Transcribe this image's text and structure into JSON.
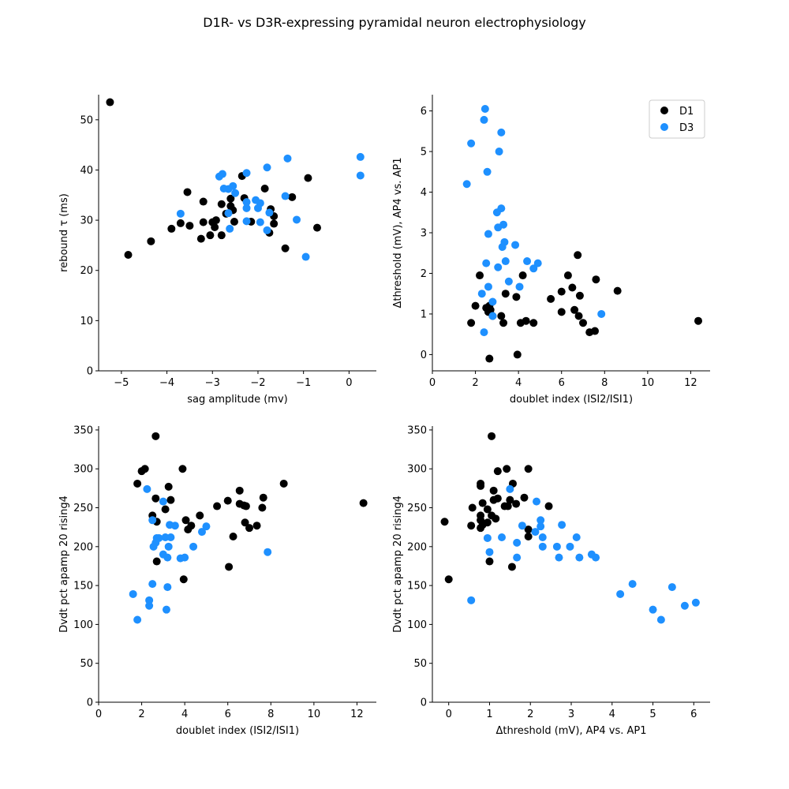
{
  "figure": {
    "title": "D1R- vs D3R-expressing pyramidal neuron electrophysiology"
  },
  "colors": {
    "D1": "#000000",
    "D3": "#1e90ff"
  },
  "chart_data": [
    {
      "type": "scatter",
      "xlabel": "sag amplitude (mv)",
      "ylabel": "rebound τ (ms)",
      "xlim": [
        -5.5,
        0.6
      ],
      "ylim": [
        0,
        55
      ],
      "xticks": [
        -5,
        -4,
        -3,
        -2,
        -1,
        0
      ],
      "yticks": [
        0,
        10,
        20,
        30,
        40,
        50
      ],
      "legend": null,
      "series": [
        {
          "name": "D1",
          "points": [
            [
              -5.25,
              53.5
            ],
            [
              -4.85,
              23.1
            ],
            [
              -4.35,
              25.8
            ],
            [
              -3.9,
              28.3
            ],
            [
              -3.7,
              29.4
            ],
            [
              -3.55,
              35.6
            ],
            [
              -3.5,
              28.9
            ],
            [
              -3.25,
              26.3
            ],
            [
              -3.2,
              33.7
            ],
            [
              -3.2,
              29.6
            ],
            [
              -3.05,
              27.0
            ],
            [
              -3.0,
              29.6
            ],
            [
              -2.95,
              28.6
            ],
            [
              -2.92,
              30.0
            ],
            [
              -2.8,
              33.2
            ],
            [
              -2.8,
              27.0
            ],
            [
              -2.7,
              31.3
            ],
            [
              -2.6,
              34.3
            ],
            [
              -2.6,
              32.8
            ],
            [
              -2.55,
              32.0
            ],
            [
              -2.52,
              29.7
            ],
            [
              -2.35,
              38.8
            ],
            [
              -2.3,
              34.4
            ],
            [
              -2.15,
              29.7
            ],
            [
              -1.85,
              36.3
            ],
            [
              -1.75,
              27.5
            ],
            [
              -1.72,
              32.2
            ],
            [
              -1.65,
              30.8
            ],
            [
              -1.65,
              29.3
            ],
            [
              -1.4,
              24.4
            ],
            [
              -1.25,
              34.6
            ],
            [
              -0.9,
              38.4
            ],
            [
              -0.7,
              28.5
            ]
          ]
        },
        {
          "name": "D3",
          "points": [
            [
              -3.7,
              31.3
            ],
            [
              -2.85,
              38.7
            ],
            [
              -2.78,
              39.2
            ],
            [
              -2.75,
              36.3
            ],
            [
              -2.65,
              36.2
            ],
            [
              -2.55,
              36.8
            ],
            [
              -2.62,
              28.3
            ],
            [
              -2.65,
              31.4
            ],
            [
              -2.5,
              35.4
            ],
            [
              -2.25,
              39.4
            ],
            [
              -2.25,
              33.6
            ],
            [
              -2.25,
              32.4
            ],
            [
              -2.25,
              29.8
            ],
            [
              -2.05,
              34.0
            ],
            [
              -2.0,
              32.4
            ],
            [
              -1.95,
              29.6
            ],
            [
              -1.95,
              33.4
            ],
            [
              -1.8,
              40.5
            ],
            [
              -1.8,
              28.0
            ],
            [
              -1.75,
              31.5
            ],
            [
              -1.4,
              34.8
            ],
            [
              -1.35,
              42.3
            ],
            [
              -1.15,
              30.1
            ],
            [
              -0.95,
              22.7
            ],
            [
              0.25,
              42.6
            ],
            [
              0.25,
              38.9
            ]
          ]
        }
      ]
    },
    {
      "type": "scatter",
      "xlabel": "doublet index (ISI2/ISI1)",
      "ylabel": "Δthreshold (mV), AP4 vs. AP1",
      "xlim": [
        0,
        12.9
      ],
      "ylim": [
        -0.4,
        6.4
      ],
      "xticks": [
        0,
        2,
        4,
        6,
        8,
        10,
        12
      ],
      "yticks": [
        0,
        1,
        2,
        3,
        4,
        5,
        6
      ],
      "legend": {
        "location": "top-right",
        "entries": [
          "D1",
          "D3"
        ]
      },
      "series": [
        {
          "name": "D1",
          "points": [
            [
              1.8,
              0.78
            ],
            [
              2.0,
              1.2
            ],
            [
              2.2,
              1.95
            ],
            [
              2.5,
              1.15
            ],
            [
              2.6,
              1.05
            ],
            [
              2.65,
              1.2
            ],
            [
              2.7,
              1.1
            ],
            [
              2.65,
              -0.1
            ],
            [
              2.8,
              0.95
            ],
            [
              3.2,
              0.95
            ],
            [
              3.3,
              0.78
            ],
            [
              3.4,
              1.5
            ],
            [
              3.9,
              1.42
            ],
            [
              3.95,
              0.0
            ],
            [
              4.1,
              0.78
            ],
            [
              4.2,
              1.95
            ],
            [
              4.35,
              0.83
            ],
            [
              4.7,
              0.78
            ],
            [
              5.5,
              1.37
            ],
            [
              6.0,
              1.55
            ],
            [
              6.0,
              1.05
            ],
            [
              6.3,
              1.95
            ],
            [
              6.5,
              1.65
            ],
            [
              6.6,
              1.1
            ],
            [
              6.75,
              2.45
            ],
            [
              6.8,
              0.95
            ],
            [
              6.85,
              1.45
            ],
            [
              7.0,
              0.78
            ],
            [
              7.3,
              0.55
            ],
            [
              7.55,
              0.58
            ],
            [
              7.6,
              1.85
            ],
            [
              8.6,
              1.57
            ],
            [
              12.35,
              0.83
            ]
          ]
        },
        {
          "name": "D3",
          "points": [
            [
              1.6,
              4.2
            ],
            [
              1.8,
              5.2
            ],
            [
              2.3,
              1.5
            ],
            [
              2.4,
              0.55
            ],
            [
              2.4,
              5.78
            ],
            [
              2.45,
              6.05
            ],
            [
              2.5,
              2.25
            ],
            [
              2.55,
              4.5
            ],
            [
              2.6,
              2.97
            ],
            [
              2.6,
              1.67
            ],
            [
              2.8,
              0.95
            ],
            [
              2.8,
              1.3
            ],
            [
              3.0,
              3.5
            ],
            [
              3.05,
              3.13
            ],
            [
              3.05,
              2.15
            ],
            [
              3.1,
              5.0
            ],
            [
              3.2,
              5.47
            ],
            [
              3.2,
              3.6
            ],
            [
              3.25,
              2.65
            ],
            [
              3.3,
              3.2
            ],
            [
              3.35,
              2.77
            ],
            [
              3.4,
              2.3
            ],
            [
              3.55,
              1.8
            ],
            [
              3.85,
              2.7
            ],
            [
              4.05,
              1.67
            ],
            [
              4.4,
              2.3
            ],
            [
              4.7,
              2.12
            ],
            [
              4.9,
              2.25
            ],
            [
              7.85,
              1.0
            ]
          ]
        }
      ]
    },
    {
      "type": "scatter",
      "xlabel": "doublet index (ISI2/ISI1)",
      "ylabel": "Dvdt pct apamp  20  rising4",
      "xlim": [
        0,
        12.9
      ],
      "ylim": [
        0,
        355
      ],
      "xticks": [
        0,
        2,
        4,
        6,
        8,
        10,
        12
      ],
      "yticks": [
        0,
        50,
        100,
        150,
        200,
        250,
        300,
        350
      ],
      "legend": null,
      "series": [
        {
          "name": "D1",
          "points": [
            [
              1.8,
              281
            ],
            [
              2.0,
              297
            ],
            [
              2.15,
              300
            ],
            [
              2.5,
              240
            ],
            [
              2.65,
              342
            ],
            [
              2.65,
              262
            ],
            [
              2.7,
              232
            ],
            [
              2.7,
              181
            ],
            [
              3.1,
              248
            ],
            [
              3.25,
              277
            ],
            [
              3.35,
              260
            ],
            [
              3.9,
              300
            ],
            [
              3.95,
              158
            ],
            [
              4.05,
              234
            ],
            [
              4.15,
              222
            ],
            [
              4.3,
              227
            ],
            [
              4.7,
              240
            ],
            [
              5.5,
              252
            ],
            [
              6.0,
              259
            ],
            [
              6.05,
              174
            ],
            [
              6.25,
              213
            ],
            [
              6.55,
              272
            ],
            [
              6.55,
              255
            ],
            [
              6.75,
              253
            ],
            [
              6.8,
              231
            ],
            [
              6.85,
              252
            ],
            [
              7.0,
              224
            ],
            [
              7.35,
              227
            ],
            [
              7.65,
              263
            ],
            [
              7.6,
              250
            ],
            [
              8.6,
              281
            ],
            [
              12.3,
              256
            ]
          ]
        },
        {
          "name": "D3",
          "points": [
            [
              1.6,
              139
            ],
            [
              1.8,
              106
            ],
            [
              2.25,
              274
            ],
            [
              2.35,
              131
            ],
            [
              2.35,
              124
            ],
            [
              2.5,
              234
            ],
            [
              2.5,
              152
            ],
            [
              2.55,
              200
            ],
            [
              2.65,
              205
            ],
            [
              2.7,
              211
            ],
            [
              2.8,
              211
            ],
            [
              3.0,
              258
            ],
            [
              3.0,
              190
            ],
            [
              3.1,
              212
            ],
            [
              3.15,
              119
            ],
            [
              3.2,
              186
            ],
            [
              3.2,
              148
            ],
            [
              3.25,
              200
            ],
            [
              3.3,
              228
            ],
            [
              3.35,
              212
            ],
            [
              3.55,
              227
            ],
            [
              3.8,
              185
            ],
            [
              4.0,
              186
            ],
            [
              4.4,
              200
            ],
            [
              4.8,
              219
            ],
            [
              5.0,
              226
            ],
            [
              7.85,
              193
            ]
          ]
        }
      ]
    },
    {
      "type": "scatter",
      "xlabel": "Δthreshold (mV), AP4 vs. AP1",
      "ylabel": "Dvdt pct apamp  20  rising4",
      "xlim": [
        -0.4,
        6.4
      ],
      "ylim": [
        0,
        355
      ],
      "xticks": [
        0,
        1,
        2,
        3,
        4,
        5,
        6
      ],
      "yticks": [
        0,
        50,
        100,
        150,
        200,
        250,
        300,
        350
      ],
      "legend": null,
      "series": [
        {
          "name": "D1",
          "points": [
            [
              -0.1,
              232
            ],
            [
              0.0,
              158
            ],
            [
              0.55,
              227
            ],
            [
              0.58,
              250
            ],
            [
              0.78,
              278
            ],
            [
              0.78,
              281
            ],
            [
              0.78,
              224
            ],
            [
              0.78,
              234
            ],
            [
              0.78,
              240
            ],
            [
              0.83,
              256
            ],
            [
              0.83,
              228
            ],
            [
              0.95,
              231
            ],
            [
              0.95,
              248
            ],
            [
              1.0,
              181
            ],
            [
              1.05,
              342
            ],
            [
              1.05,
              240
            ],
            [
              1.1,
              260
            ],
            [
              1.1,
              272
            ],
            [
              1.15,
              236
            ],
            [
              1.2,
              297
            ],
            [
              1.2,
              262
            ],
            [
              1.37,
              252
            ],
            [
              1.42,
              300
            ],
            [
              1.45,
              252
            ],
            [
              1.5,
              260
            ],
            [
              1.55,
              174
            ],
            [
              1.57,
              281
            ],
            [
              1.65,
              255
            ],
            [
              1.85,
              263
            ],
            [
              1.95,
              300
            ],
            [
              1.95,
              213
            ],
            [
              1.95,
              222
            ],
            [
              2.45,
              252
            ]
          ]
        },
        {
          "name": "D3",
          "points": [
            [
              0.55,
              131
            ],
            [
              0.95,
              211
            ],
            [
              1.0,
              193
            ],
            [
              1.3,
              212
            ],
            [
              1.5,
              274
            ],
            [
              1.67,
              205
            ],
            [
              1.67,
              186
            ],
            [
              1.8,
              227
            ],
            [
              2.12,
              219
            ],
            [
              2.15,
              258
            ],
            [
              2.25,
              234
            ],
            [
              2.25,
              226
            ],
            [
              2.3,
              200
            ],
            [
              2.3,
              212
            ],
            [
              2.65,
              200
            ],
            [
              2.7,
              186
            ],
            [
              2.77,
              228
            ],
            [
              2.97,
              200
            ],
            [
              3.13,
              212
            ],
            [
              3.2,
              186
            ],
            [
              3.5,
              190
            ],
            [
              3.6,
              186
            ],
            [
              4.2,
              139
            ],
            [
              4.5,
              152
            ],
            [
              5.0,
              119
            ],
            [
              5.2,
              106
            ],
            [
              5.47,
              148
            ],
            [
              5.78,
              124
            ],
            [
              6.05,
              128
            ]
          ]
        }
      ]
    }
  ]
}
